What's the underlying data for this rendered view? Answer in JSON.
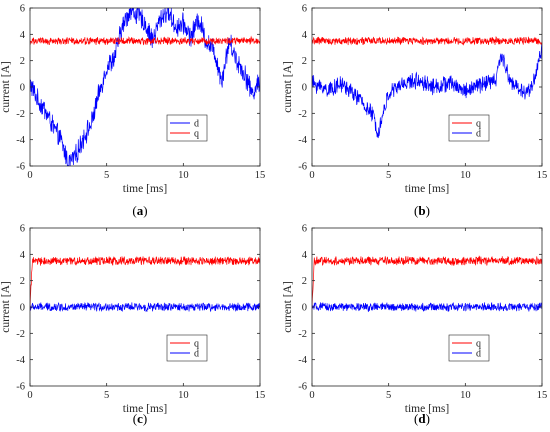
{
  "chart_data": [
    {
      "type": "line",
      "panel_label": "a",
      "xlabel": "time [ms]",
      "ylabel": "current [A]",
      "xlim": [
        0,
        15
      ],
      "ylim": [
        -6,
        6
      ],
      "xticks": [
        0,
        5,
        10,
        15
      ],
      "yticks": [
        -6,
        -4,
        -2,
        0,
        2,
        4,
        6
      ],
      "legend_position": "lower-right",
      "legend_order": [
        "d",
        "q"
      ],
      "grid": false,
      "series": [
        {
          "name": "d",
          "color": "#0000ff",
          "x": [
            0,
            0.5,
            1,
            1.5,
            2,
            2.5,
            3,
            3.5,
            4,
            4.5,
            5,
            5.5,
            6,
            6.5,
            7,
            7.5,
            8,
            8.5,
            9,
            9.5,
            10,
            10.5,
            11,
            11.5,
            12,
            12.5,
            13,
            13.5,
            14,
            14.5,
            15
          ],
          "y": [
            0.3,
            -1.0,
            -1.8,
            -3.0,
            -4.0,
            -5.8,
            -5.2,
            -3.8,
            -2.8,
            -0.5,
            1.5,
            2.2,
            4.5,
            5.8,
            5.5,
            4.8,
            3.5,
            5.2,
            5.8,
            4.5,
            4.8,
            3.8,
            5.2,
            3.5,
            2.8,
            0.5,
            3.5,
            2.0,
            1.0,
            -0.5,
            0.5
          ],
          "noise": 0.7
        },
        {
          "name": "q",
          "color": "#ff0000",
          "x": [
            0,
            15
          ],
          "y": [
            3.5,
            3.5
          ],
          "noise": 0.25
        }
      ]
    },
    {
      "type": "line",
      "panel_label": "b",
      "xlabel": "time [ms]",
      "ylabel": "current [A]",
      "xlim": [
        0,
        15
      ],
      "ylim": [
        -6,
        6
      ],
      "xticks": [
        0,
        5,
        10,
        15
      ],
      "yticks": [
        -6,
        -4,
        -2,
        0,
        2,
        4,
        6
      ],
      "legend_position": "lower-right",
      "legend_order": [
        "q",
        "d"
      ],
      "grid": false,
      "series": [
        {
          "name": "d",
          "color": "#0000ff",
          "x": [
            0,
            1,
            2,
            3,
            4,
            4.3,
            5,
            6,
            7,
            8,
            9,
            10,
            11,
            12,
            12.3,
            13,
            14,
            14.5,
            15
          ],
          "y": [
            0.3,
            -0.2,
            0.2,
            -0.8,
            -2.2,
            -3.5,
            -0.5,
            0.3,
            0.5,
            0.0,
            0.3,
            -0.3,
            0.2,
            0.5,
            2.5,
            0.3,
            -0.5,
            0.5,
            3.0
          ],
          "noise": 0.55
        },
        {
          "name": "q",
          "color": "#ff0000",
          "x": [
            0,
            15
          ],
          "y": [
            3.5,
            3.5
          ],
          "noise": 0.25
        }
      ]
    },
    {
      "type": "line",
      "panel_label": "c",
      "xlabel": "time [ms]",
      "ylabel": "current [A]",
      "xlim": [
        0,
        15
      ],
      "ylim": [
        -6,
        6
      ],
      "xticks": [
        0,
        5,
        10,
        15
      ],
      "yticks": [
        -6,
        -4,
        -2,
        0,
        2,
        4,
        6
      ],
      "legend_position": "lower-right",
      "legend_order": [
        "q",
        "d"
      ],
      "grid": false,
      "series": [
        {
          "name": "d",
          "color": "#0000ff",
          "x": [
            0,
            15
          ],
          "y": [
            0.0,
            0.0
          ],
          "noise": 0.28
        },
        {
          "name": "q",
          "color": "#ff0000",
          "x": [
            0,
            0.15,
            15
          ],
          "y": [
            0.0,
            3.5,
            3.5
          ],
          "noise": 0.28
        }
      ]
    },
    {
      "type": "line",
      "panel_label": "d",
      "xlabel": "time [ms]",
      "ylabel": "current [A]",
      "xlim": [
        0,
        15
      ],
      "ylim": [
        -6,
        6
      ],
      "xticks": [
        0,
        5,
        10,
        15
      ],
      "yticks": [
        -6,
        -4,
        -2,
        0,
        2,
        4,
        6
      ],
      "legend_position": "lower-right",
      "legend_order": [
        "q",
        "d"
      ],
      "grid": false,
      "series": [
        {
          "name": "d",
          "color": "#0000ff",
          "x": [
            0,
            15
          ],
          "y": [
            0.0,
            0.0
          ],
          "noise": 0.28
        },
        {
          "name": "q",
          "color": "#ff0000",
          "x": [
            0,
            0.15,
            15
          ],
          "y": [
            0.0,
            3.5,
            3.5
          ],
          "noise": 0.28
        }
      ]
    }
  ],
  "captions": [
    {
      "open": "(",
      "letter": "a",
      "close": ")"
    },
    {
      "open": "(",
      "letter": "b",
      "close": ")"
    },
    {
      "open": "(",
      "letter": "c",
      "close": ")"
    },
    {
      "open": "(",
      "letter": "d",
      "close": ")"
    }
  ]
}
